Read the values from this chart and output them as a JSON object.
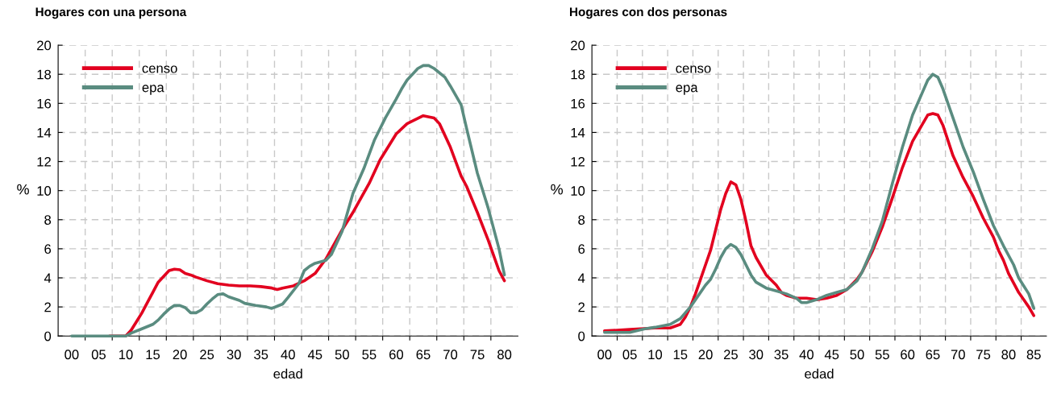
{
  "chart_data": [
    {
      "type": "line",
      "title": "Hogares con una persona",
      "xlabel": "edad",
      "ylabel": "%",
      "xlim": [
        -2.5,
        82.5
      ],
      "ylim": [
        0,
        20
      ],
      "yticks": [
        0,
        2,
        4,
        6,
        8,
        10,
        12,
        14,
        16,
        18,
        20
      ],
      "xticks": [
        {
          "value": 0,
          "label": "00"
        },
        {
          "value": 5,
          "label": "05"
        },
        {
          "value": 10,
          "label": "10"
        },
        {
          "value": 15,
          "label": "15"
        },
        {
          "value": 20,
          "label": "20"
        },
        {
          "value": 25,
          "label": "25"
        },
        {
          "value": 30,
          "label": "30"
        },
        {
          "value": 35,
          "label": "35"
        },
        {
          "value": 40,
          "label": "40"
        },
        {
          "value": 45,
          "label": "45"
        },
        {
          "value": 50,
          "label": "50"
        },
        {
          "value": 55,
          "label": "55"
        },
        {
          "value": 60,
          "label": "60"
        },
        {
          "value": 65,
          "label": "65"
        },
        {
          "value": 70,
          "label": "70"
        },
        {
          "value": 75,
          "label": "75"
        },
        {
          "value": 80,
          "label": "80"
        },
        {
          "value": 2.5,
          "label": null
        },
        {
          "value": 7.5,
          "label": null
        },
        {
          "value": 12.5,
          "label": null
        },
        {
          "value": 17.5,
          "label": null
        },
        {
          "value": 22.5,
          "label": null
        },
        {
          "value": 27.5,
          "label": null
        },
        {
          "value": 32.5,
          "label": null
        },
        {
          "value": 37.5,
          "label": null
        },
        {
          "value": 42.5,
          "label": null
        },
        {
          "value": 47.5,
          "label": null
        },
        {
          "value": 52.5,
          "label": null
        },
        {
          "value": 57.5,
          "label": null
        },
        {
          "value": 62.5,
          "label": null
        },
        {
          "value": 67.5,
          "label": null
        },
        {
          "value": 72.5,
          "label": null
        },
        {
          "value": 77.5,
          "label": null
        }
      ],
      "grid": true,
      "legend": "top left",
      "marker": "none",
      "line_style": "solid",
      "series": [
        {
          "name": "censo",
          "color": "#e2001f",
          "x": [
            7,
            10,
            11,
            12,
            13,
            14,
            15,
            16,
            17,
            18,
            19,
            20,
            21,
            22,
            23,
            25,
            27,
            29,
            31,
            33,
            35,
            37,
            38,
            39,
            41,
            43,
            45,
            47,
            50,
            52,
            55,
            57,
            60,
            62,
            65,
            67,
            68,
            70,
            72,
            73,
            75,
            77,
            79,
            80
          ],
          "values": [
            0,
            0,
            0.4,
            1.0,
            1.6,
            2.3,
            3.0,
            3.7,
            4.1,
            4.5,
            4.6,
            4.55,
            4.3,
            4.2,
            4.05,
            3.8,
            3.6,
            3.5,
            3.45,
            3.45,
            3.4,
            3.3,
            3.2,
            3.3,
            3.45,
            3.8,
            4.3,
            5.3,
            7.3,
            8.5,
            10.5,
            12.1,
            13.9,
            14.6,
            15.15,
            15.0,
            14.6,
            13.0,
            11.0,
            10.3,
            8.5,
            6.6,
            4.5,
            3.8
          ]
        },
        {
          "name": "epa",
          "color": "#5a8c80",
          "x": [
            0,
            5,
            10,
            11,
            13,
            15,
            16,
            17,
            18,
            19,
            20,
            21,
            22,
            23,
            24,
            25,
            26,
            27,
            28,
            29,
            31,
            32,
            34,
            36,
            37,
            38,
            39,
            40,
            42,
            43,
            44,
            45,
            47,
            48,
            50,
            51,
            52,
            54,
            56,
            58,
            60,
            61,
            62,
            64,
            65,
            66,
            67,
            69,
            70,
            72,
            73,
            75,
            77,
            79,
            80
          ],
          "values": [
            0,
            0,
            0,
            0.2,
            0.5,
            0.8,
            1.1,
            1.5,
            1.85,
            2.1,
            2.1,
            1.95,
            1.6,
            1.6,
            1.8,
            2.2,
            2.55,
            2.85,
            2.9,
            2.7,
            2.45,
            2.25,
            2.1,
            2.0,
            1.9,
            2.05,
            2.2,
            2.65,
            3.6,
            4.5,
            4.8,
            5.0,
            5.2,
            5.6,
            7.2,
            8.5,
            9.8,
            11.5,
            13.5,
            15.0,
            16.3,
            17.0,
            17.6,
            18.4,
            18.6,
            18.6,
            18.4,
            17.8,
            17.2,
            15.9,
            14.3,
            11.2,
            8.8,
            6.0,
            4.2
          ]
        }
      ]
    },
    {
      "type": "line",
      "title": "Hogares con dos personas",
      "xlabel": "edad",
      "ylabel": "%",
      "xlim": [
        -2.5,
        87.5
      ],
      "ylim": [
        0,
        20
      ],
      "yticks": [
        0,
        2,
        4,
        6,
        8,
        10,
        12,
        14,
        16,
        18,
        20
      ],
      "xticks": [
        {
          "value": 0,
          "label": "00"
        },
        {
          "value": 5,
          "label": "05"
        },
        {
          "value": 10,
          "label": "10"
        },
        {
          "value": 15,
          "label": "15"
        },
        {
          "value": 20,
          "label": "20"
        },
        {
          "value": 25,
          "label": "25"
        },
        {
          "value": 30,
          "label": "30"
        },
        {
          "value": 35,
          "label": "35"
        },
        {
          "value": 40,
          "label": "40"
        },
        {
          "value": 45,
          "label": "45"
        },
        {
          "value": 50,
          "label": "50"
        },
        {
          "value": 55,
          "label": "55"
        },
        {
          "value": 60,
          "label": "60"
        },
        {
          "value": 65,
          "label": "65"
        },
        {
          "value": 70,
          "label": "70"
        },
        {
          "value": 75,
          "label": "75"
        },
        {
          "value": 80,
          "label": "80"
        },
        {
          "value": 85,
          "label": "85"
        },
        {
          "value": 2.5,
          "label": null
        },
        {
          "value": 7.5,
          "label": null
        },
        {
          "value": 12.5,
          "label": null
        },
        {
          "value": 17.5,
          "label": null
        },
        {
          "value": 22.5,
          "label": null
        },
        {
          "value": 27.5,
          "label": null
        },
        {
          "value": 32.5,
          "label": null
        },
        {
          "value": 37.5,
          "label": null
        },
        {
          "value": 42.5,
          "label": null
        },
        {
          "value": 47.5,
          "label": null
        },
        {
          "value": 52.5,
          "label": null
        },
        {
          "value": 57.5,
          "label": null
        },
        {
          "value": 62.5,
          "label": null
        },
        {
          "value": 67.5,
          "label": null
        },
        {
          "value": 72.5,
          "label": null
        },
        {
          "value": 77.5,
          "label": null
        },
        {
          "value": 82.5,
          "label": null
        }
      ],
      "grid": true,
      "legend": "top left",
      "marker": "none",
      "line_style": "solid",
      "series": [
        {
          "name": "censo",
          "color": "#e2001f",
          "x": [
            0,
            5,
            10,
            13,
            15,
            16,
            17,
            18,
            19,
            20,
            21,
            22,
            23,
            24,
            25,
            26,
            27,
            28,
            29,
            30,
            32,
            34,
            35,
            36,
            38,
            40,
            42,
            44,
            46,
            48,
            50,
            51,
            53,
            55,
            57,
            59,
            61,
            63,
            64,
            65,
            66,
            67,
            69,
            71,
            73,
            75,
            77,
            78,
            79,
            80,
            82,
            84,
            85
          ],
          "values": [
            0.35,
            0.45,
            0.55,
            0.55,
            0.8,
            1.3,
            2.0,
            2.9,
            3.9,
            4.9,
            5.9,
            7.3,
            8.7,
            9.8,
            10.6,
            10.4,
            9.4,
            7.9,
            6.2,
            5.4,
            4.2,
            3.5,
            3.0,
            2.8,
            2.6,
            2.6,
            2.5,
            2.6,
            2.8,
            3.2,
            3.9,
            4.4,
            5.8,
            7.5,
            9.5,
            11.6,
            13.4,
            14.6,
            15.2,
            15.3,
            15.2,
            14.5,
            12.4,
            10.9,
            9.6,
            8.1,
            6.8,
            5.9,
            5.2,
            4.3,
            3.0,
            2.0,
            1.4
          ]
        },
        {
          "name": "epa",
          "color": "#5a8c80",
          "x": [
            0,
            5,
            8,
            10,
            13,
            15,
            16,
            17,
            18,
            20,
            21,
            22,
            23,
            24,
            25,
            26,
            27,
            28,
            29,
            30,
            32,
            34,
            36,
            38,
            39,
            40,
            42,
            44,
            46,
            48,
            50,
            51,
            53,
            55,
            57,
            59,
            61,
            63,
            64,
            65,
            66,
            67,
            69,
            71,
            73,
            75,
            77,
            79,
            81,
            82,
            84,
            85
          ],
          "values": [
            0.25,
            0.25,
            0.5,
            0.6,
            0.8,
            1.2,
            1.6,
            2.0,
            2.5,
            3.5,
            3.9,
            4.6,
            5.4,
            6.0,
            6.3,
            6.1,
            5.6,
            4.9,
            4.2,
            3.7,
            3.3,
            3.1,
            2.9,
            2.6,
            2.3,
            2.3,
            2.5,
            2.8,
            3.0,
            3.2,
            3.8,
            4.4,
            6.0,
            7.9,
            10.5,
            13.0,
            15.2,
            16.8,
            17.6,
            18.0,
            17.8,
            17.0,
            15.0,
            13.0,
            11.3,
            9.4,
            7.6,
            6.2,
            4.9,
            4.0,
            2.9,
            1.9
          ]
        }
      ]
    }
  ]
}
